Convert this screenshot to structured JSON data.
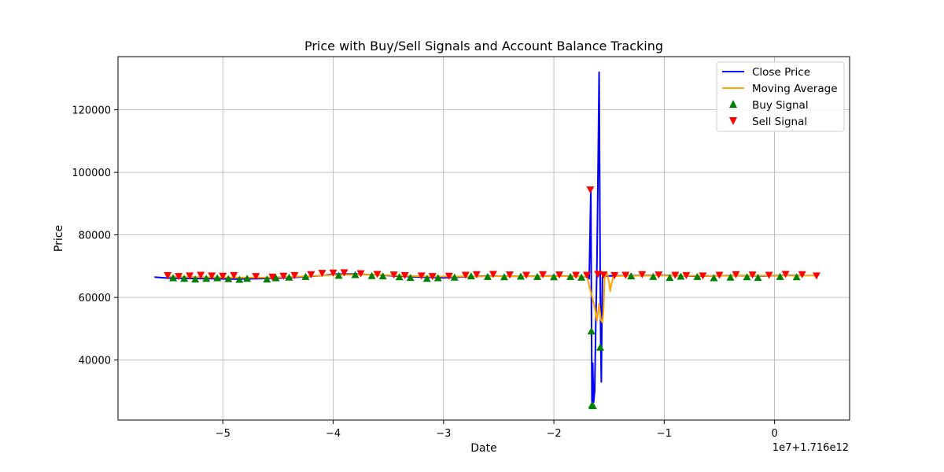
{
  "chart_data": {
    "type": "line",
    "title": "Price with Buy/Sell Signals and Account Balance Tracking",
    "xlabel": "Date",
    "ylabel": "Price",
    "x_offset_label": "1e7+1.716e12",
    "xlim": [
      -5.95,
      0.68
    ],
    "ylim": [
      20800,
      137000
    ],
    "xticks": [
      -5,
      -4,
      -3,
      -2,
      -1,
      0
    ],
    "xtick_labels": [
      "−5",
      "−4",
      "−3",
      "−2",
      "−1",
      "0"
    ],
    "yticks": [
      40000,
      60000,
      80000,
      100000,
      120000
    ],
    "ytick_labels": [
      "40000",
      "60000",
      "80000",
      "100000",
      "120000"
    ],
    "grid": true,
    "legend_position": "top-right",
    "series": [
      {
        "name": "Close Price",
        "kind": "line",
        "color": "#0000ff",
        "x": [
          -5.62,
          -5.5,
          -5.3,
          -5.1,
          -4.9,
          -4.7,
          -4.5,
          -4.3,
          -4.1,
          -4.0,
          -3.8,
          -3.6,
          -3.4,
          -3.2,
          -3.0,
          -2.8,
          -2.6,
          -2.4,
          -2.2,
          -2.0,
          -1.8,
          -1.7,
          -1.68,
          -1.665,
          -1.655,
          -1.648,
          -1.64,
          -1.63,
          -1.62,
          -1.61,
          -1.6,
          -1.59,
          -1.58,
          -1.575,
          -1.57,
          -1.565,
          -1.56,
          -1.55,
          -1.54,
          -1.5,
          -1.3,
          -1.0,
          -0.7,
          -0.4,
          -0.1,
          0.1,
          0.25
        ],
        "y": [
          66500,
          66200,
          66100,
          66000,
          65900,
          66000,
          66200,
          66500,
          67000,
          67500,
          67500,
          67200,
          66800,
          66500,
          66300,
          66600,
          66900,
          66800,
          66800,
          66900,
          66800,
          66600,
          66000,
          94500,
          26000,
          39000,
          26500,
          30000,
          52000,
          70000,
          100000,
          132000,
          66000,
          44000,
          33000,
          52000,
          66500,
          67000,
          66800,
          66900,
          67000,
          67100,
          66800,
          67000,
          66900,
          67100,
          67000
        ]
      },
      {
        "name": "Moving Average",
        "kind": "line",
        "color": "#ffa500",
        "x": [
          -5.5,
          -5.2,
          -4.9,
          -4.6,
          -4.3,
          -4.0,
          -3.7,
          -3.4,
          -3.1,
          -2.8,
          -2.5,
          -2.2,
          -1.9,
          -1.7,
          -1.66,
          -1.63,
          -1.61,
          -1.59,
          -1.575,
          -1.56,
          -1.55,
          -1.54,
          -1.52,
          -1.5,
          -1.49,
          -1.48,
          -1.46,
          -1.4,
          -1.2,
          -0.9,
          -0.6,
          -0.3,
          0.0,
          0.4
        ],
        "y": [
          66700,
          66500,
          66400,
          66400,
          66700,
          67200,
          67300,
          67000,
          66700,
          66700,
          66800,
          66800,
          66800,
          66700,
          61000,
          57000,
          52500,
          58000,
          53000,
          52000,
          56000,
          66000,
          68000,
          65000,
          62000,
          64000,
          66800,
          66900,
          67000,
          67000,
          66900,
          67000,
          67000,
          67000
        ]
      },
      {
        "name": "Buy Signal",
        "kind": "scatter",
        "marker": "triangle-up",
        "color": "#008000",
        "x": [
          -5.45,
          -5.35,
          -5.25,
          -5.15,
          -5.05,
          -4.95,
          -4.85,
          -4.78,
          -4.6,
          -4.52,
          -4.4,
          -4.25,
          -3.95,
          -3.8,
          -3.65,
          -3.55,
          -3.4,
          -3.3,
          -3.15,
          -3.05,
          -2.9,
          -2.75,
          -2.6,
          -2.45,
          -2.3,
          -2.15,
          -2.0,
          -1.85,
          -1.75,
          -1.66,
          -1.655,
          -1.645,
          -1.58,
          -1.3,
          -1.1,
          -0.95,
          -0.85,
          -0.7,
          -0.55,
          -0.4,
          -0.25,
          -0.15,
          0.05,
          0.2
        ],
        "y": [
          66200,
          66000,
          65800,
          66000,
          66200,
          65900,
          65700,
          66000,
          65800,
          66200,
          66400,
          66600,
          67000,
          67200,
          66900,
          66800,
          66500,
          66300,
          66000,
          66200,
          66400,
          66800,
          66600,
          66500,
          66700,
          66600,
          66500,
          66600,
          66400,
          49200,
          25500,
          25300,
          44000,
          66800,
          66600,
          66300,
          66700,
          66600,
          66200,
          66400,
          66500,
          66300,
          66600,
          66500
        ]
      },
      {
        "name": "Sell Signal",
        "kind": "scatter",
        "marker": "triangle-down",
        "color": "#ff0000",
        "x": [
          -5.5,
          -5.4,
          -5.3,
          -5.2,
          -5.1,
          -5.0,
          -4.9,
          -4.7,
          -4.55,
          -4.45,
          -4.35,
          -4.2,
          -4.1,
          -4.0,
          -3.9,
          -3.75,
          -3.6,
          -3.45,
          -3.35,
          -3.2,
          -3.1,
          -2.95,
          -2.8,
          -2.7,
          -2.55,
          -2.4,
          -2.25,
          -2.1,
          -1.95,
          -1.8,
          -1.7,
          -1.67,
          -1.6,
          -1.55,
          -1.45,
          -1.35,
          -1.2,
          -1.05,
          -0.9,
          -0.8,
          -0.65,
          -0.5,
          -0.35,
          -0.2,
          -0.05,
          0.1,
          0.25,
          0.38
        ],
        "y": [
          67100,
          66800,
          67000,
          67200,
          67000,
          66900,
          67100,
          66800,
          66600,
          66900,
          67100,
          67400,
          67800,
          67900,
          68000,
          67700,
          67500,
          67300,
          67100,
          67000,
          66800,
          66900,
          67200,
          67400,
          67500,
          67300,
          67200,
          67400,
          67300,
          67200,
          67200,
          94500,
          67500,
          67300,
          67100,
          67200,
          67400,
          67300,
          67200,
          67100,
          67000,
          67200,
          67400,
          67300,
          67200,
          67500,
          67400,
          67000
        ]
      }
    ]
  }
}
